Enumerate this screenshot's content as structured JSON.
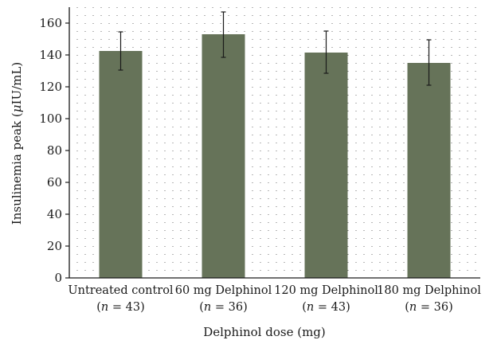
{
  "chart_data": {
    "type": "bar",
    "title": "",
    "xlabel": "Delphinol dose (mg)",
    "ylabel": "Insulinemia peak (μIU/mL)",
    "ylim": [
      0,
      170
    ],
    "yticks": [
      0,
      20,
      40,
      60,
      80,
      100,
      120,
      140,
      160
    ],
    "grid": true,
    "categories": [
      {
        "name": "Untreated control",
        "n_label": "(n = 43)",
        "n_prefix": "(",
        "n_var": "n",
        "n_rest": " = 43)"
      },
      {
        "name": "60 mg Delphinol",
        "n_label": "(n = 36)",
        "n_prefix": "(",
        "n_var": "n",
        "n_rest": " = 36)"
      },
      {
        "name": "120 mg Delphinol",
        "n_label": "(n = 43)",
        "n_prefix": "(",
        "n_var": "n",
        "n_rest": " = 43)"
      },
      {
        "name": "180 mg Delphinol",
        "n_label": "(n = 36)",
        "n_prefix": "(",
        "n_var": "n",
        "n_rest": " = 36)"
      }
    ],
    "values": [
      142.5,
      153,
      141.5,
      135
    ],
    "error_upper": [
      154.5,
      167,
      155,
      149.5
    ],
    "error_lower": [
      130.5,
      138.5,
      128.5,
      121
    ],
    "bar_color": "#667359"
  }
}
